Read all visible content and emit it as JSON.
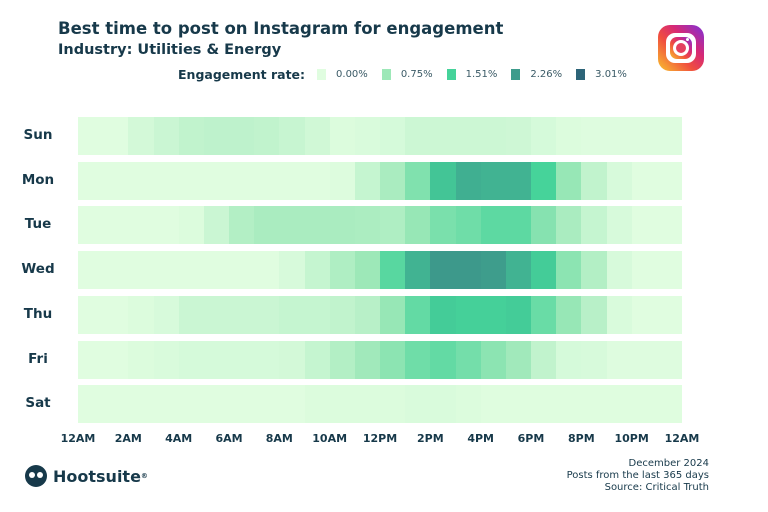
{
  "chart_data": {
    "type": "heatmap",
    "title": "Best time to post on Instagram for engagement",
    "subtitle": "Industry: Utilities & Energy",
    "legend_title": "Engagement rate:",
    "legend": [
      {
        "label": "0.00%",
        "value": 0,
        "color": "#e0fde0"
      },
      {
        "label": "0.75%",
        "value": 0.75,
        "color": "#9de8b8"
      },
      {
        "label": "1.51%",
        "value": 1.51,
        "color": "#45d39a"
      },
      {
        "label": "2.26%",
        "value": 2.26,
        "color": "#3e9c8c"
      },
      {
        "label": "3.01%",
        "value": 3.01,
        "color": "#2d6478"
      }
    ],
    "unit": "% engagement rate",
    "rows": [
      "Sun",
      "Mon",
      "Tue",
      "Wed",
      "Thu",
      "Fri",
      "Sat"
    ],
    "columns_hours": 24,
    "x_tick_labels": [
      "12AM",
      "2AM",
      "4AM",
      "6AM",
      "8AM",
      "10AM",
      "12PM",
      "2PM",
      "4PM",
      "6PM",
      "8PM",
      "10PM",
      "12AM"
    ],
    "values": [
      [
        0,
        0,
        0.15,
        0.25,
        0.35,
        0.38,
        0.38,
        0.35,
        0.28,
        0.18,
        0.05,
        0.08,
        0.12,
        0.22,
        0.22,
        0.22,
        0.22,
        0.2,
        0.12,
        0.05,
        0.02,
        0.02,
        0.02,
        0.02
      ],
      [
        0,
        0,
        0,
        0,
        0,
        0,
        0,
        0,
        0,
        0,
        0.03,
        0.3,
        0.6,
        1.0,
        1.7,
        2.0,
        1.95,
        1.95,
        1.5,
        0.8,
        0.35,
        0.1,
        0,
        0
      ],
      [
        0,
        0,
        0,
        0,
        0.05,
        0.25,
        0.5,
        0.6,
        0.6,
        0.6,
        0.6,
        0.58,
        0.55,
        0.8,
        1.05,
        1.15,
        1.3,
        1.3,
        0.95,
        0.6,
        0.3,
        0.1,
        0,
        0
      ],
      [
        0,
        0,
        0,
        0,
        0,
        0,
        0,
        0,
        0.1,
        0.3,
        0.55,
        0.75,
        1.35,
        1.95,
        2.3,
        2.3,
        2.25,
        1.95,
        1.6,
        0.9,
        0.5,
        0.1,
        0,
        0
      ],
      [
        0,
        0,
        0.05,
        0.1,
        0.25,
        0.25,
        0.25,
        0.25,
        0.3,
        0.3,
        0.35,
        0.45,
        0.8,
        1.25,
        1.6,
        1.55,
        1.55,
        1.6,
        1.2,
        0.8,
        0.45,
        0.08,
        0,
        0
      ],
      [
        0,
        0,
        0.05,
        0.08,
        0.12,
        0.12,
        0.12,
        0.12,
        0.15,
        0.3,
        0.5,
        0.7,
        0.9,
        1.15,
        1.25,
        1.1,
        0.9,
        0.7,
        0.35,
        0.12,
        0.1,
        0.02,
        0.02,
        0.02
      ],
      [
        0,
        0,
        0,
        0,
        0,
        0,
        0,
        0,
        0,
        0.05,
        0.05,
        0.05,
        0.05,
        0.08,
        0.08,
        0.05,
        0.01,
        0.01,
        0.01,
        0.01,
        0.01,
        0.01,
        0.01,
        0.01
      ]
    ]
  },
  "brand": {
    "logo_text": "Hootsuite",
    "registered": "®"
  },
  "footer": {
    "date": "December 2024",
    "period": "Posts from the last 365 days",
    "source": "Source: Critical Truth"
  }
}
